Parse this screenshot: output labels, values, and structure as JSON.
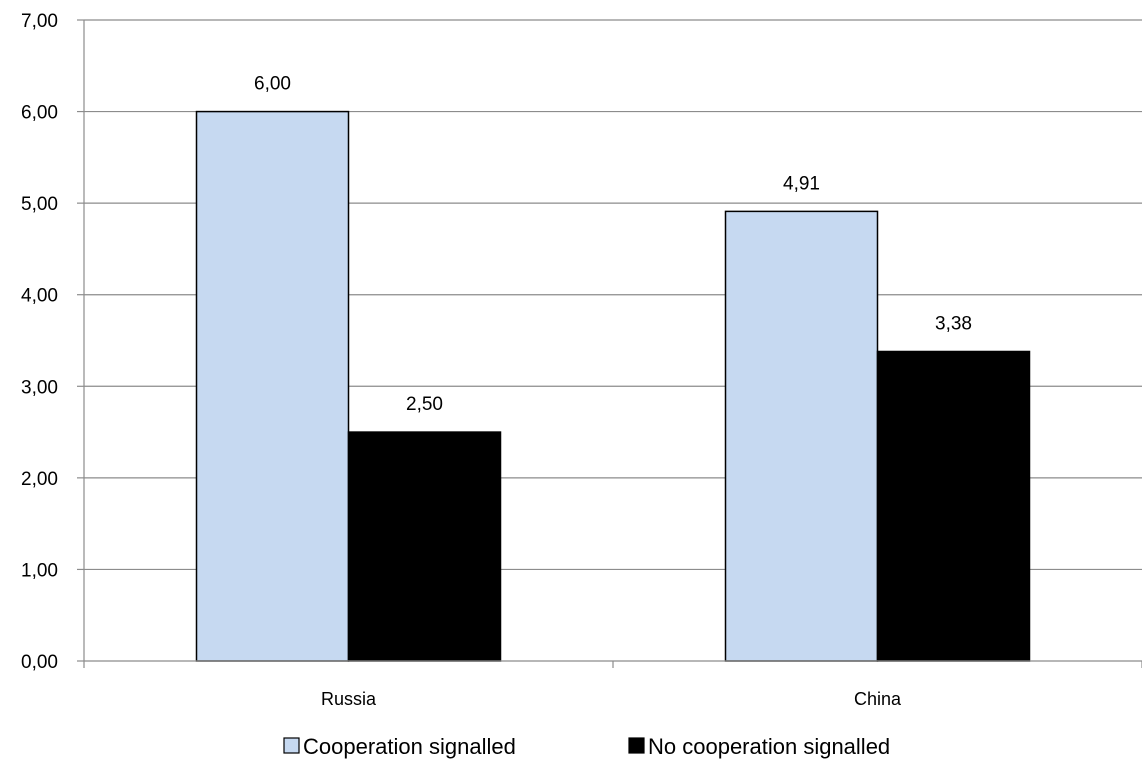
{
  "chart_data": {
    "type": "bar",
    "categories": [
      "Russia",
      "China"
    ],
    "series": [
      {
        "name": "Cooperation signalled",
        "values": [
          6.0,
          4.91
        ],
        "labels": [
          "6,00",
          "4,91"
        ],
        "color": "#c6d9f1"
      },
      {
        "name": "No cooperation signalled",
        "values": [
          2.5,
          3.38
        ],
        "labels": [
          "2,50",
          "3,38"
        ],
        "color": "#000000"
      }
    ],
    "ylim": [
      0,
      7
    ],
    "yticks": [
      0,
      1,
      2,
      3,
      4,
      5,
      6,
      7
    ],
    "ytick_labels": [
      "0,00",
      "1,00",
      "2,00",
      "3,00",
      "4,00",
      "5,00",
      "6,00",
      "7,00"
    ],
    "grid": true,
    "legend_position": "bottom",
    "title": "",
    "xlabel": "",
    "ylabel": ""
  }
}
